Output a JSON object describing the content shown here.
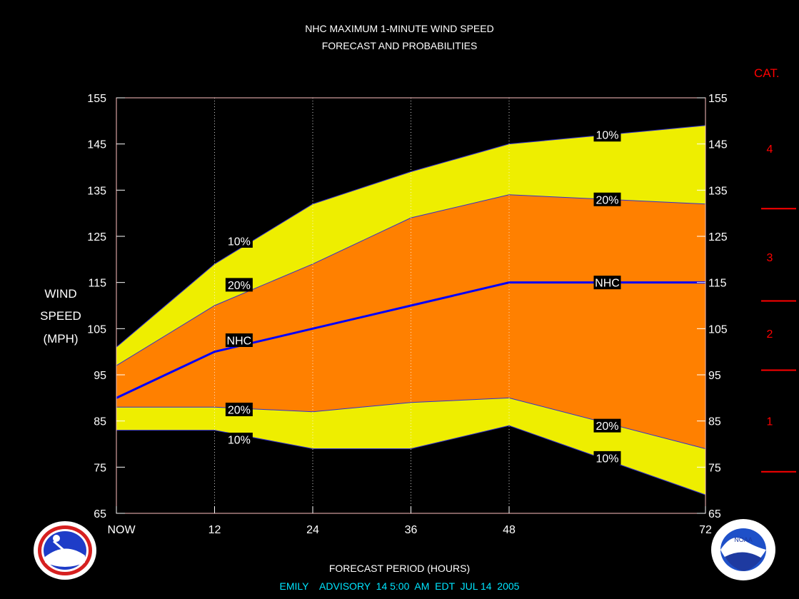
{
  "title_line1": "NHC MAXIMUM 1-MINUTE WIND SPEED",
  "title_line2": "FORECAST AND PROBABILITIES",
  "ylabel": [
    "WIND",
    "SPEED",
    "(MPH)"
  ],
  "xlabel": "FORECAST PERIOD (HOURS)",
  "advisory": "EMILY    ADVISORY  14 5:00  AM  EDT  JUL 14  2005",
  "category_header": "CAT.",
  "colors": {
    "background": "#000000",
    "band_10": "#eeee00",
    "band_20": "#ff8000",
    "nhc_line": "#0000ff",
    "text": "#ffffff",
    "category": "#ff0000",
    "advisory_text": "#00e5ff",
    "frame": "#ffc0c0"
  },
  "logos": {
    "left": "nws-weather-service-logo",
    "right": "noaa-logo"
  },
  "chart_data": {
    "type": "area",
    "title": "NHC MAXIMUM 1-MINUTE WIND SPEED FORECAST AND PROBABILITIES",
    "xlabel": "FORECAST PERIOD (HOURS)",
    "ylabel": "WIND SPEED (MPH)",
    "x": [
      0,
      12,
      24,
      36,
      48,
      72
    ],
    "x_tick_labels": [
      "NOW",
      "12",
      "24",
      "36",
      "48",
      "72"
    ],
    "y_ticks": [
      65,
      75,
      85,
      95,
      105,
      115,
      125,
      135,
      145,
      155
    ],
    "ylim": [
      65,
      155
    ],
    "xlim": [
      0,
      72
    ],
    "grid": "vertical dotted at 12, 24, 36, 48",
    "series": [
      {
        "name": "10%",
        "role": "upper_10",
        "values": [
          101,
          119,
          132,
          139,
          145,
          149
        ]
      },
      {
        "name": "20%",
        "role": "upper_20",
        "values": [
          97,
          110,
          119,
          129,
          134,
          132
        ]
      },
      {
        "name": "NHC",
        "role": "nhc",
        "values": [
          90,
          100,
          105,
          110,
          115,
          115
        ]
      },
      {
        "name": "20%",
        "role": "lower_20",
        "values": [
          88,
          88,
          87,
          89,
          90,
          79
        ]
      },
      {
        "name": "10%",
        "role": "lower_10",
        "values": [
          83,
          83,
          79,
          79,
          84,
          69
        ]
      }
    ],
    "annotations": [
      {
        "text": "10%",
        "x": 15,
        "y": 124
      },
      {
        "text": "20%",
        "x": 15,
        "y": 114.5
      },
      {
        "text": "NHC",
        "x": 15,
        "y": 102.5
      },
      {
        "text": "20%",
        "x": 15,
        "y": 87.5
      },
      {
        "text": "10%",
        "x": 15,
        "y": 81
      },
      {
        "text": "10%",
        "x": 60,
        "y": 147
      },
      {
        "text": "20%",
        "x": 60,
        "y": 133
      },
      {
        "text": "NHC",
        "x": 60,
        "y": 115
      },
      {
        "text": "20%",
        "x": 60,
        "y": 84
      },
      {
        "text": "10%",
        "x": 60,
        "y": 77
      }
    ],
    "categories": {
      "header": "CAT.",
      "labels": [
        {
          "text": "1",
          "y": 85
        },
        {
          "text": "2",
          "y": 104
        },
        {
          "text": "3",
          "y": 120.5
        },
        {
          "text": "4",
          "y": 144
        }
      ],
      "boundaries": [
        74,
        96,
        111,
        131
      ]
    }
  }
}
